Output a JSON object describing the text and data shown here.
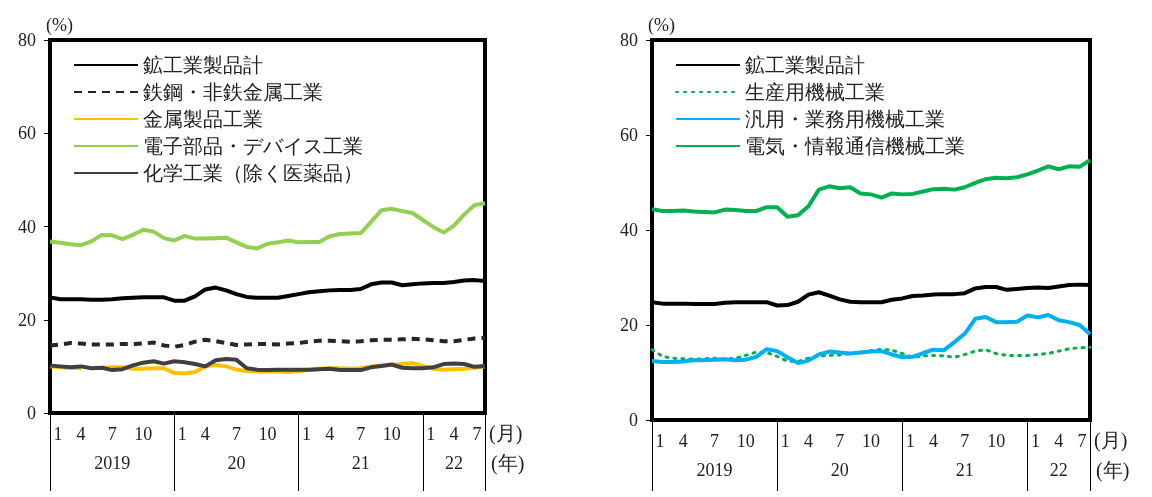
{
  "chart_data": [
    {
      "type": "line",
      "ylabel": "(%)",
      "xlabel": "(月)",
      "ylim": [
        0,
        80
      ],
      "yticks": [
        0,
        20,
        40,
        60,
        80
      ],
      "legend": "top left",
      "grid": false,
      "categories": [
        "1",
        null,
        null,
        "4",
        null,
        null,
        "7",
        null,
        null,
        "10",
        null,
        null,
        "1",
        null,
        null,
        "4",
        null,
        null,
        "7",
        null,
        null,
        "10",
        null,
        null,
        "1",
        null,
        null,
        "4",
        null,
        null,
        "7",
        null,
        null,
        "10",
        null,
        null,
        "1",
        null,
        null,
        "4",
        null,
        null,
        "7"
      ],
      "annotations": [
        "2019",
        "20",
        "21",
        "22",
        "(年)"
      ],
      "series": [
        {
          "name": "鉱工業製品計",
          "color": "#000000",
          "line_style": "solid",
          "values": [
            24.8,
            24.4,
            24.4,
            24.4,
            24.3,
            24.3,
            24.4,
            24.6,
            24.7,
            24.8,
            24.8,
            24.8,
            24.1,
            24.1,
            25.0,
            26.5,
            26.9,
            26.3,
            25.5,
            24.9,
            24.7,
            24.7,
            24.7,
            25.1,
            25.5,
            25.9,
            26.1,
            26.3,
            26.4,
            26.4,
            26.6,
            27.6,
            28.0,
            28.0,
            27.4,
            27.6,
            27.8,
            27.9,
            27.9,
            28.1,
            28.4,
            28.5,
            28.3
          ]
        },
        {
          "name": "鉄鋼・非鉄金属工業",
          "color": "#262626",
          "line_style": "dashed",
          "values": [
            14.5,
            14.7,
            15.0,
            14.9,
            14.7,
            14.7,
            14.7,
            14.8,
            14.8,
            14.9,
            15.1,
            14.5,
            14.2,
            14.6,
            15.3,
            15.7,
            15.4,
            15.0,
            14.6,
            14.7,
            14.8,
            14.8,
            14.7,
            14.9,
            15.0,
            15.3,
            15.5,
            15.5,
            15.4,
            15.3,
            15.4,
            15.6,
            15.7,
            15.7,
            15.8,
            15.9,
            15.8,
            15.6,
            15.4,
            15.4,
            15.7,
            16.0,
            16.1
          ]
        },
        {
          "name": "金属製品工業",
          "color": "#ffc000",
          "line_style": "solid",
          "values": [
            10.0,
            9.8,
            9.7,
            9.6,
            null,
            9.7,
            9.8,
            9.8,
            9.5,
            9.5,
            9.6,
            9.6,
            8.6,
            8.5,
            8.8,
            10.0,
            10.3,
            10.0,
            9.3,
            9.0,
            8.9,
            8.9,
            8.9,
            8.8,
            9.0,
            9.2,
            9.5,
            9.6,
            9.6,
            9.5,
            9.6,
            10.0,
            10.2,
            10.3,
            10.5,
            10.7,
            10.1,
            9.5,
            9.3,
            9.4,
            9.5,
            9.7,
            10.0
          ]
        },
        {
          "name": "電子部品・デバイス工業",
          "color": "#92d050",
          "line_style": "solid",
          "values": [
            36.8,
            36.5,
            36.2,
            36.0,
            36.8,
            38.2,
            38.1,
            37.3,
            38.2,
            39.3,
            38.9,
            37.5,
            37.0,
            38.0,
            37.4,
            37.4,
            37.5,
            37.6,
            36.6,
            35.6,
            35.3,
            36.3,
            36.6,
            37.0,
            36.6,
            36.7,
            36.7,
            37.9,
            38.4,
            38.5,
            38.6,
            41.0,
            43.5,
            43.8,
            43.3,
            42.9,
            41.4,
            39.9,
            38.7,
            40.2,
            42.6,
            44.6,
            45.0
          ]
        },
        {
          "name": "化学工業（除く医薬品）",
          "color": "#404040",
          "line_style": "solid",
          "values": [
            10.2,
            10.0,
            9.8,
            10.0,
            9.6,
            9.7,
            9.2,
            9.4,
            10.2,
            10.8,
            11.1,
            10.6,
            11.1,
            10.9,
            10.5,
            10.0,
            11.3,
            11.6,
            11.4,
            9.6,
            9.3,
            9.2,
            9.3,
            9.3,
            9.3,
            9.3,
            9.4,
            9.5,
            9.2,
            9.2,
            9.2,
            9.8,
            10.1,
            10.4,
            9.7,
            9.6,
            9.6,
            9.8,
            10.5,
            10.6,
            10.5,
            9.9,
            10.1
          ]
        }
      ]
    },
    {
      "type": "line",
      "ylabel": "(%)",
      "xlabel": "(月)",
      "ylim": [
        0,
        80
      ],
      "yticks": [
        0,
        20,
        40,
        60,
        80
      ],
      "legend": "top left",
      "grid": false,
      "categories": [
        "1",
        null,
        null,
        "4",
        null,
        null,
        "7",
        null,
        null,
        "10",
        null,
        null,
        "1",
        null,
        null,
        "4",
        null,
        null,
        "7",
        null,
        null,
        "10",
        null,
        null,
        "1",
        null,
        null,
        "4",
        null,
        null,
        "7",
        null,
        null,
        "10",
        null,
        null,
        "1",
        null,
        null,
        "4",
        null,
        null,
        "7"
      ],
      "annotations": [
        "2019",
        "20",
        "21",
        "22",
        "(年)"
      ],
      "series": [
        {
          "name": "鉱工業製品計",
          "color": "#000000",
          "line_style": "solid",
          "values": [
            24.8,
            24.5,
            24.5,
            24.5,
            24.4,
            24.4,
            24.4,
            24.7,
            24.8,
            24.8,
            24.8,
            24.8,
            24.1,
            24.2,
            24.9,
            26.4,
            26.9,
            26.2,
            25.4,
            24.9,
            24.8,
            24.8,
            24.8,
            25.3,
            25.6,
            26.1,
            26.2,
            26.4,
            26.5,
            26.5,
            26.7,
            27.7,
            28.0,
            28.0,
            27.4,
            27.6,
            27.8,
            27.9,
            27.8,
            28.1,
            28.4,
            28.5,
            28.4
          ]
        },
        {
          "name": "生産用機械工業",
          "color": "#00b050",
          "line_style": "dotted",
          "values": [
            14.8,
            13.4,
            13.0,
            12.9,
            12.8,
            12.9,
            13.0,
            12.8,
            13.0,
            13.6,
            14.3,
            14.2,
            13.4,
            12.4,
            12.3,
            13.0,
            13.5,
            13.6,
            13.7,
            14.0,
            14.2,
            14.6,
            14.9,
            14.7,
            14.0,
            13.2,
            13.5,
            13.6,
            13.5,
            13.2,
            13.8,
            14.5,
            14.8,
            14.0,
            13.6,
            13.6,
            13.6,
            13.8,
            14.0,
            14.5,
            15.0,
            15.2,
            15.3
          ]
        },
        {
          "name": "汎用・業務用機械工業",
          "color": "#00b0f0",
          "line_style": "solid",
          "values": [
            12.4,
            12.2,
            12.2,
            12.3,
            12.6,
            12.6,
            12.7,
            12.8,
            12.6,
            12.7,
            13.3,
            14.9,
            14.5,
            13.2,
            12.0,
            12.5,
            13.8,
            14.4,
            14.2,
            14.0,
            14.2,
            14.4,
            14.5,
            13.8,
            13.2,
            13.3,
            14.1,
            14.8,
            14.7,
            16.4,
            18.2,
            21.3,
            21.7,
            20.6,
            20.6,
            20.7,
            22.0,
            21.6,
            22.1,
            21.0,
            20.6,
            20.0,
            18.1
          ]
        },
        {
          "name": "電気・情報通信機械工業",
          "color": "#00b050",
          "line_style": "solid",
          "values": [
            44.4,
            44.0,
            44.0,
            44.1,
            43.9,
            43.8,
            43.7,
            44.3,
            44.2,
            44.0,
            44.0,
            44.8,
            44.8,
            42.8,
            43.1,
            45.0,
            48.5,
            49.2,
            48.8,
            49.0,
            47.7,
            47.5,
            46.8,
            47.7,
            47.5,
            47.6,
            48.1,
            48.6,
            48.7,
            48.5,
            49.0,
            49.9,
            50.7,
            51.0,
            50.9,
            51.1,
            51.7,
            52.5,
            53.4,
            52.8,
            53.4,
            53.3,
            54.7
          ]
        }
      ]
    }
  ]
}
